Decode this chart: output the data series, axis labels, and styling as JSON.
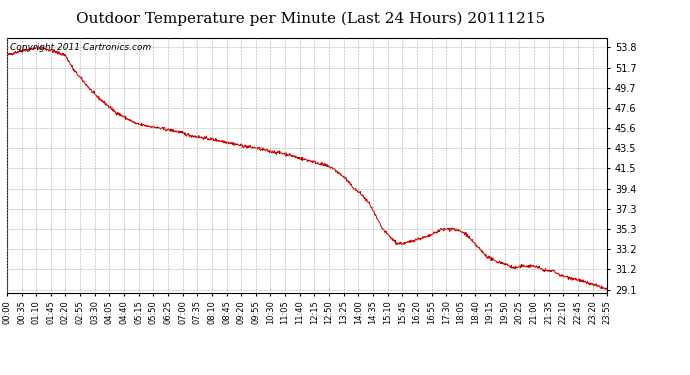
{
  "title": "Outdoor Temperature per Minute (Last 24 Hours) 20111215",
  "copyright_text": "Copyright 2011 Cartronics.com",
  "line_color": "#cc0000",
  "background_color": "#ffffff",
  "grid_color": "#aaaaaa",
  "yticks": [
    29.1,
    31.2,
    33.2,
    35.3,
    37.3,
    39.4,
    41.5,
    43.5,
    45.6,
    47.6,
    49.7,
    51.7,
    53.8
  ],
  "ylim": [
    28.8,
    54.8
  ],
  "xtick_labels": [
    "00:00",
    "00:35",
    "01:10",
    "01:45",
    "02:20",
    "02:55",
    "03:30",
    "04:05",
    "04:40",
    "05:15",
    "05:50",
    "06:25",
    "07:00",
    "07:35",
    "08:10",
    "08:45",
    "09:20",
    "09:55",
    "10:30",
    "11:05",
    "11:40",
    "12:15",
    "12:50",
    "13:25",
    "14:00",
    "14:35",
    "15:10",
    "15:45",
    "16:20",
    "16:55",
    "17:30",
    "18:05",
    "18:40",
    "19:15",
    "19:50",
    "20:25",
    "21:00",
    "21:35",
    "22:10",
    "22:45",
    "23:20",
    "23:55"
  ],
  "title_fontsize": 11,
  "copyright_fontsize": 6.5,
  "tick_fontsize": 6,
  "ytick_fontsize": 7,
  "control_points": [
    [
      0,
      53.0
    ],
    [
      30,
      53.4
    ],
    [
      80,
      53.8
    ],
    [
      140,
      53.0
    ],
    [
      160,
      51.5
    ],
    [
      210,
      49.0
    ],
    [
      260,
      47.2
    ],
    [
      310,
      46.0
    ],
    [
      360,
      45.6
    ],
    [
      410,
      45.2
    ],
    [
      440,
      44.8
    ],
    [
      480,
      44.5
    ],
    [
      520,
      44.2
    ],
    [
      560,
      43.8
    ],
    [
      600,
      43.5
    ],
    [
      630,
      43.2
    ],
    [
      660,
      43.0
    ],
    [
      680,
      42.8
    ],
    [
      700,
      42.5
    ],
    [
      730,
      42.2
    ],
    [
      760,
      41.8
    ],
    [
      780,
      41.5
    ],
    [
      810,
      40.5
    ],
    [
      830,
      39.5
    ],
    [
      850,
      38.8
    ],
    [
      870,
      37.8
    ],
    [
      885,
      36.5
    ],
    [
      900,
      35.3
    ],
    [
      920,
      34.4
    ],
    [
      935,
      33.8
    ],
    [
      955,
      33.8
    ],
    [
      980,
      34.2
    ],
    [
      1010,
      34.5
    ],
    [
      1040,
      35.2
    ],
    [
      1070,
      35.3
    ],
    [
      1100,
      34.8
    ],
    [
      1120,
      33.8
    ],
    [
      1150,
      32.5
    ],
    [
      1170,
      32.0
    ],
    [
      1190,
      31.8
    ],
    [
      1205,
      31.5
    ],
    [
      1215,
      31.3
    ],
    [
      1240,
      31.5
    ],
    [
      1265,
      31.5
    ],
    [
      1280,
      31.2
    ],
    [
      1295,
      31.0
    ],
    [
      1310,
      31.0
    ],
    [
      1330,
      30.5
    ],
    [
      1360,
      30.2
    ],
    [
      1390,
      29.8
    ],
    [
      1420,
      29.4
    ],
    [
      1439,
      29.1
    ]
  ]
}
